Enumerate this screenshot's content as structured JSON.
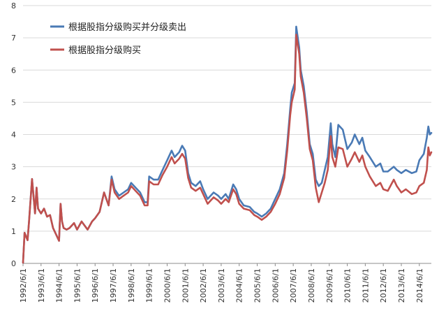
{
  "chart_data": {
    "type": "line",
    "title": "",
    "xlabel": "",
    "ylabel": "",
    "ylim": [
      0,
      8
    ],
    "y_ticks": [
      0,
      1,
      2,
      3,
      4,
      5,
      6,
      7,
      8
    ],
    "grid": "horizontal",
    "legend_position": "top-left",
    "x_ticks": [
      "1992/6/1",
      "1993/6/1",
      "1994/6/1",
      "1995/6/1",
      "1996/6/1",
      "1997/6/1",
      "1998/6/1",
      "1999/6/1",
      "2000/6/1",
      "2001/6/1",
      "2002/6/1",
      "2003/6/1",
      "2004/6/1",
      "2005/6/1",
      "2006/6/1",
      "2007/6/1",
      "2008/6/1",
      "2009/6/1",
      "2010/6/1",
      "2011/6/1",
      "2012/6/1",
      "2013/6/1",
      "2014/6/1"
    ],
    "x": [
      "1992/6/1",
      "1992/7/1",
      "1992/9/1",
      "1992/10/1",
      "1992/12/1",
      "1993/2/1",
      "1993/3/1",
      "1993/4/1",
      "1993/6/1",
      "1993/8/1",
      "1993/10/1",
      "1993/12/1",
      "1994/2/1",
      "1994/4/1",
      "1994/6/1",
      "1994/7/1",
      "1994/8/1",
      "1994/9/1",
      "1994/11/1",
      "1995/1/1",
      "1995/4/1",
      "1995/6/1",
      "1995/9/1",
      "1996/1/1",
      "1996/4/1",
      "1996/6/1",
      "1996/9/1",
      "1996/12/1",
      "1997/3/1",
      "1997/5/1",
      "1997/7/1",
      "1997/10/1",
      "1998/1/1",
      "1998/4/1",
      "1998/6/1",
      "1998/9/1",
      "1998/12/1",
      "1999/3/1",
      "1999/5/1",
      "1999/6/1",
      "1999/9/1",
      "1999/12/1",
      "2000/3/1",
      "2000/6/1",
      "2000/9/1",
      "2000/11/1",
      "2001/2/1",
      "2001/4/1",
      "2001/6/1",
      "2001/8/1",
      "2001/10/1",
      "2002/1/1",
      "2002/4/1",
      "2002/6/1",
      "2002/9/1",
      "2003/1/1",
      "2003/4/1",
      "2003/6/1",
      "2003/9/1",
      "2003/11/1",
      "2004/2/1",
      "2004/4/1",
      "2004/6/1",
      "2004/9/1",
      "2005/1/1",
      "2005/4/1",
      "2005/6/1",
      "2005/9/1",
      "2005/12/1",
      "2006/3/1",
      "2006/6/1",
      "2006/9/1",
      "2006/12/1",
      "2007/2/1",
      "2007/4/1",
      "2007/5/1",
      "2007/7/1",
      "2007/8/1",
      "2007/10/1",
      "2007/11/1",
      "2008/1/1",
      "2008/3/1",
      "2008/5/1",
      "2008/7/1",
      "2008/9/1",
      "2008/11/1",
      "2009/1/1",
      "2009/3/1",
      "2009/5/1",
      "2009/7/1",
      "2009/8/1",
      "2009/10/1",
      "2009/12/1",
      "2010/3/1",
      "2010/6/1",
      "2010/9/1",
      "2010/11/1",
      "2011/2/1",
      "2011/4/1",
      "2011/6/1",
      "2011/9/1",
      "2012/1/1",
      "2012/4/1",
      "2012/6/1",
      "2012/9/1",
      "2013/1/1",
      "2013/3/1",
      "2013/6/1",
      "2013/9/1",
      "2014/1/1",
      "2014/4/1",
      "2014/6/1",
      "2014/9/1",
      "2014/11/1",
      "2014/12/1",
      "2015/1/1",
      "2015/2/1"
    ],
    "series": [
      {
        "name": "根据股指分级购买并分级卖出",
        "color": "#4a7ab5",
        "values": [
          0.02,
          0.95,
          0.72,
          1.3,
          2.62,
          1.55,
          2.35,
          1.7,
          1.55,
          1.7,
          1.45,
          1.5,
          1.1,
          0.9,
          0.7,
          1.85,
          1.3,
          1.1,
          1.05,
          1.1,
          1.25,
          1.05,
          1.3,
          1.05,
          1.3,
          1.4,
          1.6,
          2.2,
          1.8,
          2.7,
          2.3,
          2.1,
          2.2,
          2.3,
          2.5,
          2.35,
          2.2,
          1.9,
          1.9,
          2.7,
          2.6,
          2.6,
          2.9,
          3.2,
          3.5,
          3.3,
          3.45,
          3.65,
          3.5,
          2.8,
          2.5,
          2.4,
          2.55,
          2.3,
          2.0,
          2.2,
          2.1,
          2.0,
          2.15,
          2.0,
          2.45,
          2.3,
          2.0,
          1.8,
          1.75,
          1.6,
          1.55,
          1.45,
          1.55,
          1.7,
          2.0,
          2.3,
          2.8,
          3.7,
          4.8,
          5.3,
          5.6,
          7.35,
          6.7,
          6.0,
          5.5,
          4.7,
          3.7,
          3.4,
          2.6,
          2.4,
          2.5,
          2.9,
          3.3,
          4.35,
          3.7,
          3.3,
          4.3,
          4.15,
          3.55,
          3.75,
          4.0,
          3.7,
          3.9,
          3.5,
          3.3,
          3.0,
          3.1,
          2.85,
          2.85,
          3.0,
          2.9,
          2.8,
          2.9,
          2.8,
          2.85,
          3.2,
          3.4,
          3.9,
          4.25,
          4.0,
          4.05
        ]
      },
      {
        "name": "根据股指分级购买",
        "color": "#c0504d",
        "values": [
          0.02,
          0.95,
          0.72,
          1.3,
          2.62,
          1.55,
          2.35,
          1.7,
          1.55,
          1.7,
          1.45,
          1.5,
          1.1,
          0.9,
          0.7,
          1.85,
          1.3,
          1.1,
          1.05,
          1.1,
          1.25,
          1.05,
          1.3,
          1.05,
          1.3,
          1.4,
          1.6,
          2.2,
          1.8,
          2.6,
          2.2,
          2.0,
          2.1,
          2.2,
          2.4,
          2.25,
          2.1,
          1.8,
          1.8,
          2.55,
          2.45,
          2.45,
          2.75,
          3.0,
          3.3,
          3.1,
          3.25,
          3.4,
          3.25,
          2.65,
          2.35,
          2.25,
          2.35,
          2.15,
          1.85,
          2.05,
          1.95,
          1.85,
          2.0,
          1.9,
          2.3,
          2.15,
          1.85,
          1.7,
          1.65,
          1.5,
          1.45,
          1.35,
          1.45,
          1.6,
          1.85,
          2.15,
          2.65,
          3.5,
          4.6,
          5.0,
          5.4,
          7.1,
          6.5,
          5.8,
          5.3,
          4.5,
          3.55,
          3.2,
          2.35,
          1.9,
          2.2,
          2.5,
          2.9,
          3.95,
          3.3,
          3.0,
          3.6,
          3.55,
          3.0,
          3.25,
          3.45,
          3.15,
          3.35,
          3.0,
          2.7,
          2.4,
          2.5,
          2.3,
          2.25,
          2.6,
          2.4,
          2.2,
          2.3,
          2.15,
          2.2,
          2.4,
          2.5,
          2.9,
          3.6,
          3.35,
          3.45
        ]
      }
    ]
  }
}
